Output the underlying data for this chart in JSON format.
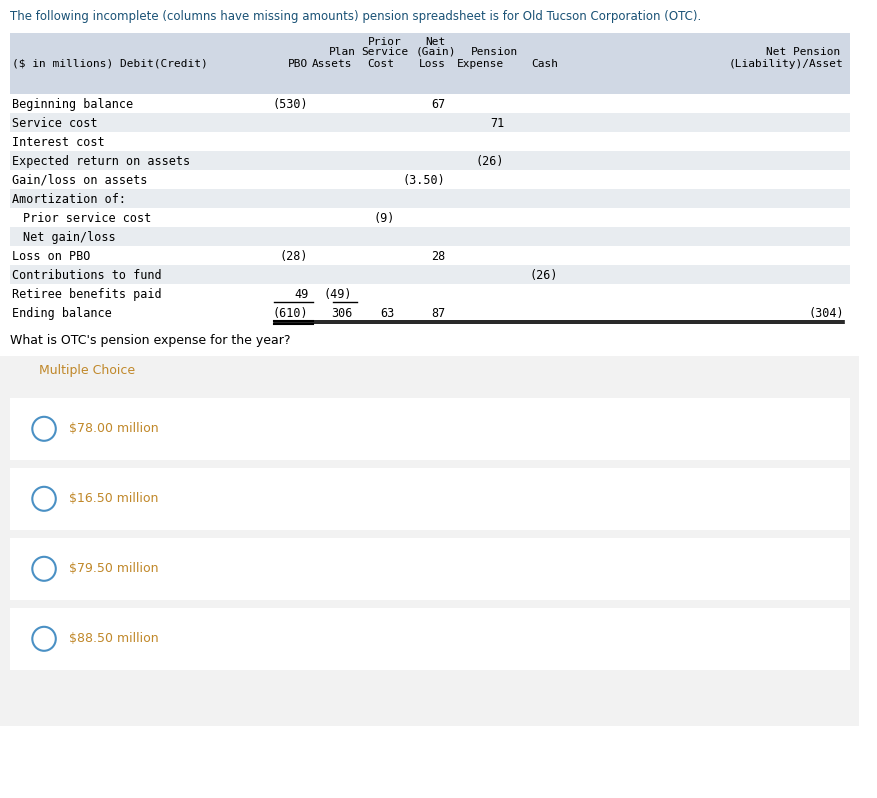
{
  "title_text": "The following incomplete (columns have missing amounts) pension spreadsheet is for Old Tucson Corporation (OTC).",
  "title_color": "#1a5276",
  "bg_color": "#ffffff",
  "table_header_bg": "#d0d8e4",
  "table_row_alt_bg": "#e8ecf0",
  "table_row_bg": "#ffffff",
  "header_line1": [
    "",
    "",
    "Prior",
    "Net",
    "",
    ""
  ],
  "header_line2": [
    "",
    "Plan",
    "Service",
    "(Gain)",
    "Pension",
    "Net Pension"
  ],
  "header_line3": [
    "($ in millions) Debit(Credit)",
    "PBO",
    "Assets",
    "Cost",
    "Loss",
    "Expense",
    "Cash",
    "(Liability)/Asset"
  ],
  "rows": [
    {
      "label": "Beginning balance",
      "indent": 0,
      "pbo": "(530)",
      "plan_assets": "",
      "prior_svc": "",
      "net_gain_loss": "67",
      "pension_exp": "",
      "cash": "",
      "net_pension": "",
      "alt": false
    },
    {
      "label": "Service cost",
      "indent": 0,
      "pbo": "",
      "plan_assets": "",
      "prior_svc": "",
      "net_gain_loss": "",
      "pension_exp": "71",
      "cash": "",
      "net_pension": "",
      "alt": true
    },
    {
      "label": "Interest cost",
      "indent": 0,
      "pbo": "",
      "plan_assets": "",
      "prior_svc": "",
      "net_gain_loss": "",
      "pension_exp": "",
      "cash": "",
      "net_pension": "",
      "alt": false
    },
    {
      "label": "Expected return on assets",
      "indent": 0,
      "pbo": "",
      "plan_assets": "",
      "prior_svc": "",
      "net_gain_loss": "",
      "pension_exp": "(26)",
      "cash": "",
      "net_pension": "",
      "alt": true
    },
    {
      "label": "Gain/loss on assets",
      "indent": 0,
      "pbo": "",
      "plan_assets": "",
      "prior_svc": "",
      "net_gain_loss": "(3.50)",
      "pension_exp": "",
      "cash": "",
      "net_pension": "",
      "alt": false
    },
    {
      "label": "Amortization of:",
      "indent": 0,
      "pbo": "",
      "plan_assets": "",
      "prior_svc": "",
      "net_gain_loss": "",
      "pension_exp": "",
      "cash": "",
      "net_pension": "",
      "alt": true
    },
    {
      "label": "Prior service cost",
      "indent": 1,
      "pbo": "",
      "plan_assets": "",
      "prior_svc": "(9)",
      "net_gain_loss": "",
      "pension_exp": "",
      "cash": "",
      "net_pension": "",
      "alt": false
    },
    {
      "label": "Net gain/loss",
      "indent": 1,
      "pbo": "",
      "plan_assets": "",
      "prior_svc": "",
      "net_gain_loss": "",
      "pension_exp": "",
      "cash": "",
      "net_pension": "",
      "alt": true
    },
    {
      "label": "Loss on PBO",
      "indent": 0,
      "pbo": "(28)",
      "plan_assets": "",
      "prior_svc": "",
      "net_gain_loss": "28",
      "pension_exp": "",
      "cash": "",
      "net_pension": "",
      "alt": false
    },
    {
      "label": "Contributions to fund",
      "indent": 0,
      "pbo": "",
      "plan_assets": "",
      "prior_svc": "",
      "net_gain_loss": "",
      "pension_exp": "",
      "cash": "(26)",
      "net_pension": "",
      "alt": true
    },
    {
      "label": "Retiree benefits paid",
      "indent": 0,
      "pbo": "49",
      "plan_assets": "(49)",
      "prior_svc": "",
      "net_gain_loss": "",
      "pension_exp": "",
      "cash": "",
      "net_pension": "",
      "alt": false
    },
    {
      "label": "Ending balance",
      "indent": 0,
      "pbo": "(610)",
      "plan_assets": "306",
      "prior_svc": "63",
      "net_gain_loss": "87",
      "pension_exp": "",
      "cash": "",
      "net_pension": "(304)",
      "alt": false
    }
  ],
  "question_text": "What is OTC's pension expense for the year?",
  "mc_label": "Multiple Choice",
  "mc_options": [
    "$78.00 million",
    "$16.50 million",
    "$79.50 million",
    "$88.50 million"
  ],
  "mc_text_color": "#c0882a",
  "mc_bg": "#f2f2f2",
  "mc_option_bg": "#ffffff",
  "circle_color": "#4a90c4",
  "font_family": "monospace"
}
